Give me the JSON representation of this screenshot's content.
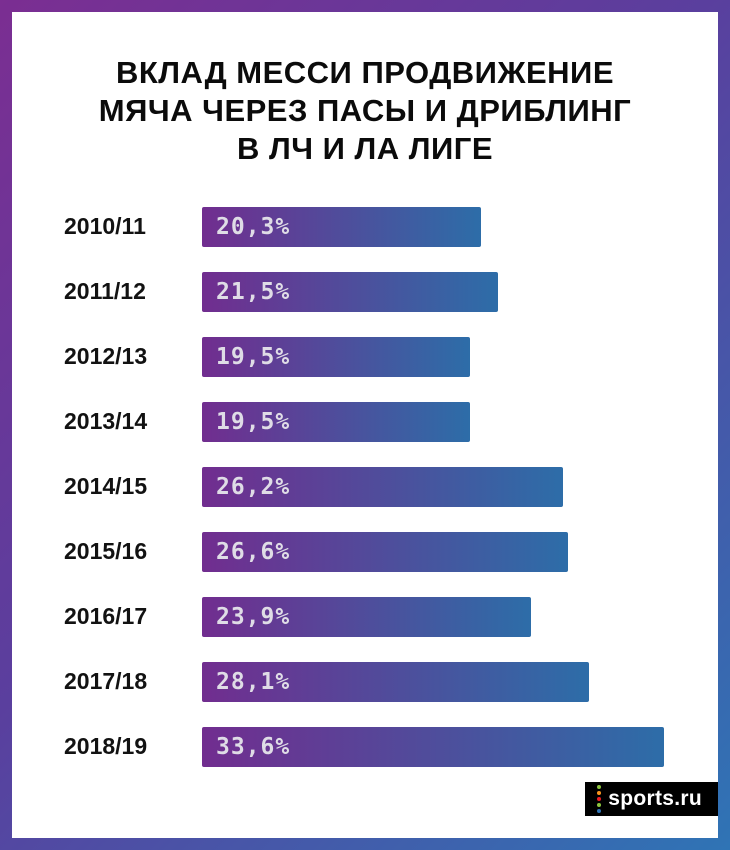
{
  "title": {
    "lines": [
      "ВКЛАД МЕССИ ПРОДВИЖЕНИЕ",
      "МЯЧА ЧЕРЕЗ ПАСЫ И ДРИБЛИНГ",
      "В ЛЧ И ЛА ЛИГЕ"
    ]
  },
  "chart_data": {
    "type": "bar",
    "orientation": "horizontal",
    "title": "ВКЛАД МЕССИ ПРОДВИЖЕНИЕ МЯЧА ЧЕРЕЗ ПАСЫ И ДРИБЛИНГ В ЛЧ И ЛА ЛИГЕ",
    "categories": [
      "2010/11",
      "2011/12",
      "2012/13",
      "2013/14",
      "2014/15",
      "2015/16",
      "2016/17",
      "2017/18",
      "2018/19"
    ],
    "values": [
      20.3,
      21.5,
      19.5,
      19.5,
      26.2,
      26.6,
      23.9,
      28.1,
      33.6
    ],
    "value_labels": [
      "20,3%",
      "21,5%",
      "19,5%",
      "19,5%",
      "26,2%",
      "26,6%",
      "23,9%",
      "28,1%",
      "33,6%"
    ],
    "xlabel": "",
    "ylabel": "",
    "xlim": [
      0,
      37.5
    ],
    "grid": false,
    "legend": "none",
    "bar_gradient": [
      "#712d8f",
      "#2d6da8"
    ]
  },
  "branding": {
    "logo_text": "sports.ru",
    "logo_bg": "#000000",
    "logo_dot_colors": [
      "#8dc63f",
      "#f7941d",
      "#ed1c24",
      "#8dc63f",
      "#2f74b5"
    ]
  },
  "colors": {
    "border_gradient_start": "#7b2e92",
    "border_gradient_end": "#2f74b5",
    "background": "#ffffff",
    "title_color": "#0b0b0b",
    "value_text": "#dfdce6"
  }
}
